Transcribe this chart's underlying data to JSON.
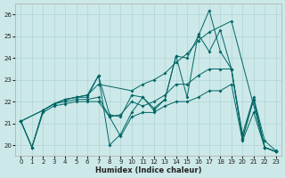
{
  "xlabel": "Humidex (Indice chaleur)",
  "xlim": [
    -0.5,
    23.5
  ],
  "ylim": [
    19.5,
    26.5
  ],
  "xticks": [
    0,
    1,
    2,
    3,
    4,
    5,
    6,
    7,
    8,
    9,
    10,
    11,
    12,
    13,
    14,
    15,
    16,
    17,
    18,
    19,
    20,
    21,
    22,
    23
  ],
  "yticks": [
    20,
    21,
    22,
    23,
    24,
    25,
    26
  ],
  "background_color": "#cce8e8",
  "line_color": "#006666",
  "lines": [
    {
      "x": [
        0,
        2,
        3,
        4,
        5,
        6,
        7,
        10,
        11,
        12,
        13,
        14,
        15,
        16,
        17,
        19,
        22,
        23
      ],
      "y": [
        21.1,
        21.6,
        21.9,
        22.1,
        22.2,
        22.3,
        22.8,
        22.5,
        22.8,
        23.0,
        23.3,
        23.8,
        24.2,
        24.8,
        25.2,
        25.7,
        19.9,
        19.7
      ]
    },
    {
      "x": [
        0,
        1,
        2,
        3,
        4,
        5,
        6,
        7,
        8,
        9,
        10,
        11,
        12,
        13,
        14,
        15,
        16,
        17,
        18,
        19,
        20,
        21,
        22,
        23
      ],
      "y": [
        21.1,
        19.9,
        21.6,
        21.9,
        22.1,
        22.2,
        22.2,
        23.2,
        20.0,
        20.5,
        21.5,
        22.2,
        21.7,
        22.1,
        24.1,
        24.0,
        25.0,
        26.2,
        24.3,
        23.5,
        20.3,
        22.1,
        19.9,
        19.7
      ]
    },
    {
      "x": [
        0,
        2,
        3,
        4,
        5,
        6,
        7,
        8,
        9,
        10,
        11,
        12,
        13,
        14,
        15,
        16,
        17,
        18,
        19,
        20,
        21,
        22,
        23
      ],
      "y": [
        21.1,
        21.6,
        21.9,
        22.1,
        22.2,
        22.3,
        23.2,
        21.4,
        21.3,
        22.3,
        22.2,
        21.6,
        22.1,
        24.1,
        22.2,
        25.1,
        24.3,
        25.3,
        23.5,
        20.5,
        22.2,
        20.2,
        19.75
      ]
    },
    {
      "x": [
        0,
        1,
        2,
        3,
        4,
        5,
        6,
        7,
        8,
        9,
        10,
        11,
        12,
        13,
        14,
        15,
        16,
        17,
        18,
        19,
        20,
        21,
        22,
        23
      ],
      "y": [
        21.1,
        19.9,
        21.6,
        21.9,
        22.0,
        22.1,
        22.1,
        22.2,
        21.3,
        21.4,
        22.0,
        21.8,
        22.0,
        22.3,
        22.8,
        22.8,
        23.2,
        23.5,
        23.5,
        23.5,
        20.3,
        22.1,
        19.9,
        19.7
      ]
    },
    {
      "x": [
        0,
        1,
        2,
        3,
        4,
        5,
        6,
        7,
        8,
        9,
        10,
        11,
        12,
        13,
        14,
        15,
        16,
        17,
        18,
        19,
        20,
        21,
        22,
        23
      ],
      "y": [
        21.1,
        19.9,
        21.5,
        21.8,
        21.9,
        22.0,
        22.0,
        22.0,
        21.3,
        20.4,
        21.3,
        21.5,
        21.5,
        21.8,
        22.0,
        22.0,
        22.2,
        22.5,
        22.5,
        22.8,
        20.2,
        21.5,
        19.9,
        19.7
      ]
    }
  ]
}
